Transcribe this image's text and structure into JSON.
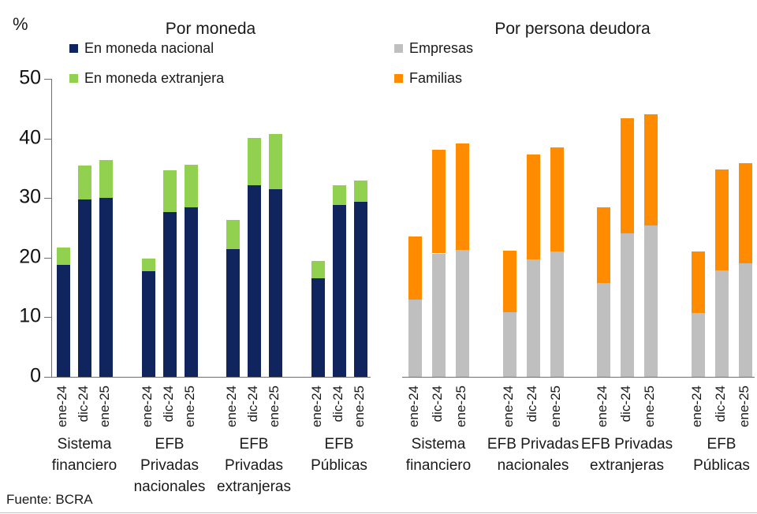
{
  "page": {
    "source": "Fuente: BCRA"
  },
  "chart_data": [
    {
      "type": "bar",
      "stacked": true,
      "title": "Por moneda",
      "unit": "%",
      "ylim": [
        0,
        50
      ],
      "yticks": [
        0,
        10,
        20,
        30,
        40,
        50
      ],
      "legend_position": "top-left",
      "grid": false,
      "x_tick_labels": [
        "ene-24",
        "dic-24",
        "ene-25"
      ],
      "groups": [
        {
          "label_lines": [
            "Sistema",
            "financiero"
          ]
        },
        {
          "label_lines": [
            "EFB",
            "Privadas",
            "nacionales"
          ]
        },
        {
          "label_lines": [
            "EFB",
            "Privadas",
            "extranjeras"
          ]
        },
        {
          "label_lines": [
            "EFB",
            "Públicas"
          ]
        }
      ],
      "series": [
        {
          "name": "En moneda nacional",
          "color": "#10245e",
          "values": [
            [
              18.8,
              29.8,
              30.0
            ],
            [
              17.7,
              27.6,
              28.4
            ],
            [
              21.4,
              32.2,
              31.5
            ],
            [
              16.5,
              28.9,
              29.4
            ]
          ]
        },
        {
          "name": "En moneda extranjera",
          "color": "#92d050",
          "values": [
            [
              2.9,
              5.6,
              6.4
            ],
            [
              2.1,
              7.0,
              7.2
            ],
            [
              4.9,
              7.9,
              9.2
            ],
            [
              2.9,
              3.3,
              3.5
            ]
          ]
        }
      ]
    },
    {
      "type": "bar",
      "stacked": true,
      "title": "Por persona deudora",
      "ylim": [
        0,
        50
      ],
      "legend_position": "top-left",
      "grid": false,
      "x_tick_labels": [
        "ene-24",
        "dic-24",
        "ene-25"
      ],
      "groups": [
        {
          "label_lines": [
            "Sistema",
            "financiero"
          ]
        },
        {
          "label_lines": [
            "EFB Privadas",
            "nacionales"
          ]
        },
        {
          "label_lines": [
            "EFB Privadas",
            "extranjeras"
          ]
        },
        {
          "label_lines": [
            "EFB",
            "Públicas"
          ]
        }
      ],
      "series": [
        {
          "name": "Empresas",
          "color": "#bfbfbf",
          "values": [
            [
              12.9,
              20.7,
              21.3
            ],
            [
              10.8,
              19.7,
              21.0
            ],
            [
              15.8,
              24.1,
              25.4
            ],
            [
              10.7,
              17.9,
              19.0
            ]
          ]
        },
        {
          "name": "Familias",
          "color": "#ff8c00",
          "values": [
            [
              10.6,
              17.4,
              17.9
            ],
            [
              10.3,
              17.6,
              17.5
            ],
            [
              12.7,
              19.3,
              18.6
            ],
            [
              10.3,
              16.9,
              16.8
            ]
          ]
        }
      ]
    }
  ]
}
